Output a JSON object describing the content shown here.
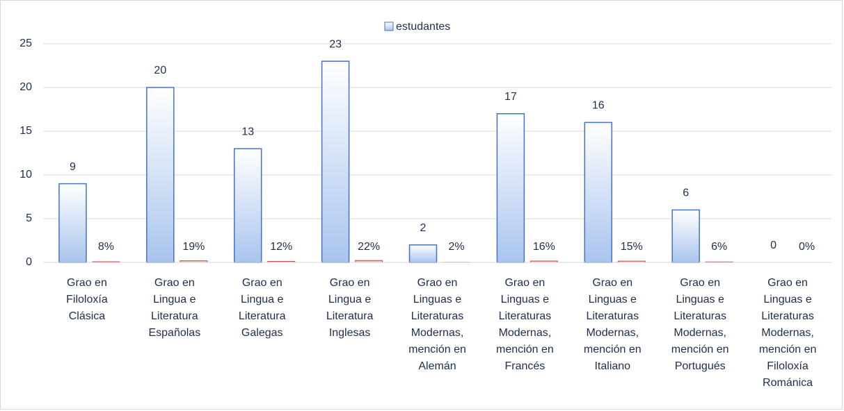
{
  "chart_data": {
    "type": "bar",
    "categories": [
      "Grao en Filoloxía Clásica",
      "Grao en Lingua e Literatura Españolas",
      "Grao en Lingua e Literatura Galegas",
      "Grao en Lingua e Literatura Inglesas",
      "Grao en Linguas e Literaturas Modernas, mención en Alemán",
      "Grao en Linguas e Literaturas Modernas, mención en Francés",
      "Grao en Linguas e Literaturas Modernas, mención en Italiano",
      "Grao en Linguas e Literaturas Modernas, mención en Portugués",
      "Grao en Linguas e Literaturas Modernas, mención en Filoloxía Románica"
    ],
    "series": [
      {
        "name": "estudantes",
        "color": "#4472c4",
        "values": [
          9,
          20,
          13,
          23,
          2,
          17,
          16,
          6,
          0
        ]
      },
      {
        "color": "#c0504d",
        "values": [
          0.08,
          0.19,
          0.12,
          0.22,
          0.02,
          0.16,
          0.15,
          0.06,
          0
        ],
        "value_labels": [
          "8%",
          "19%",
          "12%",
          "22%",
          "2%",
          "16%",
          "15%",
          "6%",
          "0%"
        ]
      }
    ],
    "ylim": [
      0,
      25
    ],
    "yticks": [
      0,
      5,
      10,
      15,
      20,
      25
    ],
    "grid": true,
    "legend": "top"
  }
}
